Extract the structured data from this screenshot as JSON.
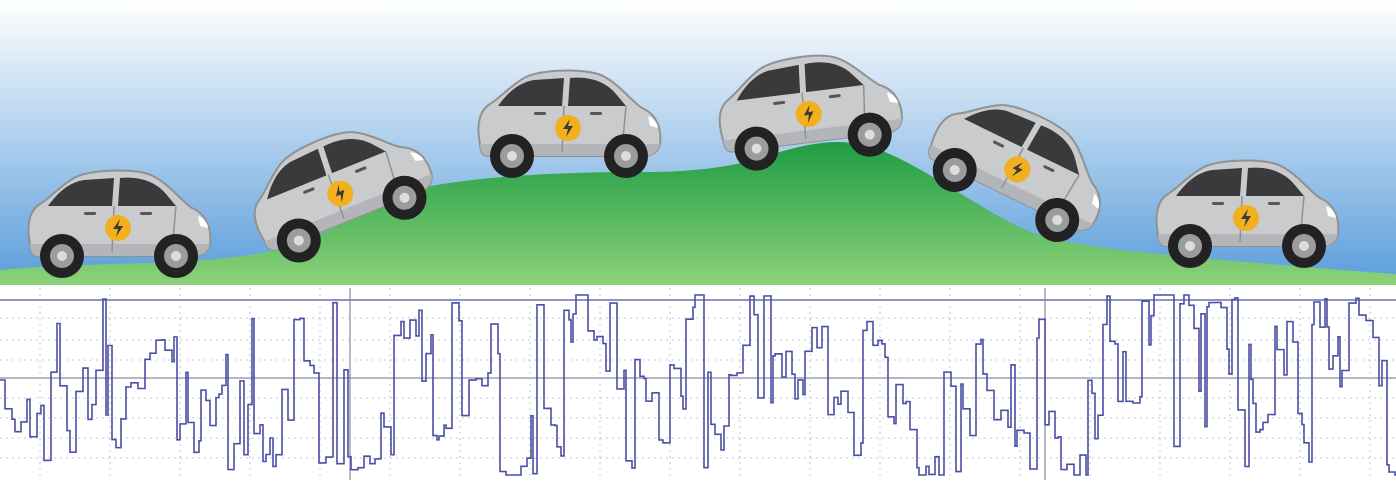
{
  "scene": {
    "car_count": 6,
    "vehicle_icon": "lightning-bolt-icon",
    "terrain": "hill-icon",
    "waveform": "signal-waveform"
  },
  "colors": {
    "sky_top": "#ffffff",
    "sky_bottom": "#5a9ddb",
    "hill_light": "#8cd27a",
    "hill_dark": "#1f9c44",
    "car_body": "#c9cbcd",
    "car_window": "#3a3a3c",
    "badge": "#f2b01e",
    "waveform_line": "#4a4fa3",
    "grid_line": "#c4c4d6"
  }
}
